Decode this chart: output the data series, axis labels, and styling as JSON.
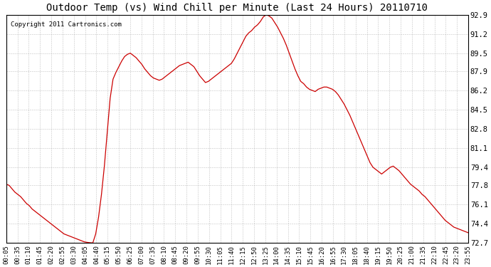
{
  "title": "Outdoor Temp (vs) Wind Chill per Minute (Last 24 Hours) 20110710",
  "copyright": "Copyright 2011 Cartronics.com",
  "line_color": "#cc0000",
  "bg_color": "#ffffff",
  "plot_bg_color": "#ffffff",
  "grid_color": "#aaaaaa",
  "yticks": [
    72.7,
    74.4,
    76.1,
    77.8,
    79.4,
    81.1,
    82.8,
    84.5,
    86.2,
    87.9,
    89.5,
    91.2,
    92.9
  ],
  "ylim": [
    72.7,
    92.9
  ],
  "xtick_labels": [
    "00:05",
    "00:35",
    "01:10",
    "01:45",
    "02:20",
    "02:55",
    "03:30",
    "04:05",
    "04:40",
    "05:15",
    "05:50",
    "06:25",
    "07:00",
    "07:35",
    "08:10",
    "08:45",
    "09:20",
    "09:55",
    "10:30",
    "11:05",
    "11:40",
    "12:15",
    "12:50",
    "13:25",
    "14:00",
    "14:35",
    "15:10",
    "15:45",
    "16:20",
    "16:55",
    "17:30",
    "18:05",
    "18:40",
    "19:15",
    "19:50",
    "20:25",
    "21:00",
    "21:35",
    "22:10",
    "22:45",
    "23:20",
    "23:55"
  ],
  "data_y": [
    77.9,
    77.8,
    77.5,
    77.2,
    77.0,
    76.8,
    76.5,
    76.2,
    76.0,
    75.7,
    75.5,
    75.3,
    75.1,
    74.9,
    74.7,
    74.5,
    74.3,
    74.1,
    73.9,
    73.7,
    73.5,
    73.4,
    73.3,
    73.2,
    73.1,
    73.0,
    72.9,
    72.8,
    72.75,
    72.72,
    72.7,
    73.5,
    75.0,
    77.0,
    79.5,
    82.5,
    85.5,
    87.2,
    87.8,
    88.3,
    88.8,
    89.2,
    89.4,
    89.5,
    89.3,
    89.1,
    88.8,
    88.5,
    88.1,
    87.8,
    87.5,
    87.3,
    87.2,
    87.1,
    87.2,
    87.4,
    87.6,
    87.8,
    88.0,
    88.2,
    88.4,
    88.5,
    88.6,
    88.7,
    88.5,
    88.3,
    87.9,
    87.5,
    87.2,
    86.9,
    87.0,
    87.2,
    87.4,
    87.6,
    87.8,
    88.0,
    88.2,
    88.4,
    88.6,
    89.0,
    89.5,
    90.0,
    90.5,
    91.0,
    91.3,
    91.5,
    91.8,
    92.0,
    92.3,
    92.7,
    92.9,
    92.8,
    92.6,
    92.2,
    91.8,
    91.3,
    90.8,
    90.2,
    89.5,
    88.8,
    88.1,
    87.5,
    87.0,
    86.8,
    86.5,
    86.3,
    86.2,
    86.1,
    86.3,
    86.4,
    86.5,
    86.5,
    86.4,
    86.3,
    86.1,
    85.8,
    85.4,
    85.0,
    84.5,
    84.0,
    83.4,
    82.8,
    82.2,
    81.6,
    81.0,
    80.4,
    79.8,
    79.4,
    79.2,
    79.0,
    78.8,
    79.0,
    79.2,
    79.4,
    79.5,
    79.3,
    79.1,
    78.8,
    78.5,
    78.2,
    77.9,
    77.7,
    77.5,
    77.3,
    77.0,
    76.8,
    76.5,
    76.2,
    75.9,
    75.6,
    75.3,
    75.0,
    74.7,
    74.5,
    74.3,
    74.1,
    74.0,
    73.9,
    73.8,
    73.7,
    73.6
  ]
}
